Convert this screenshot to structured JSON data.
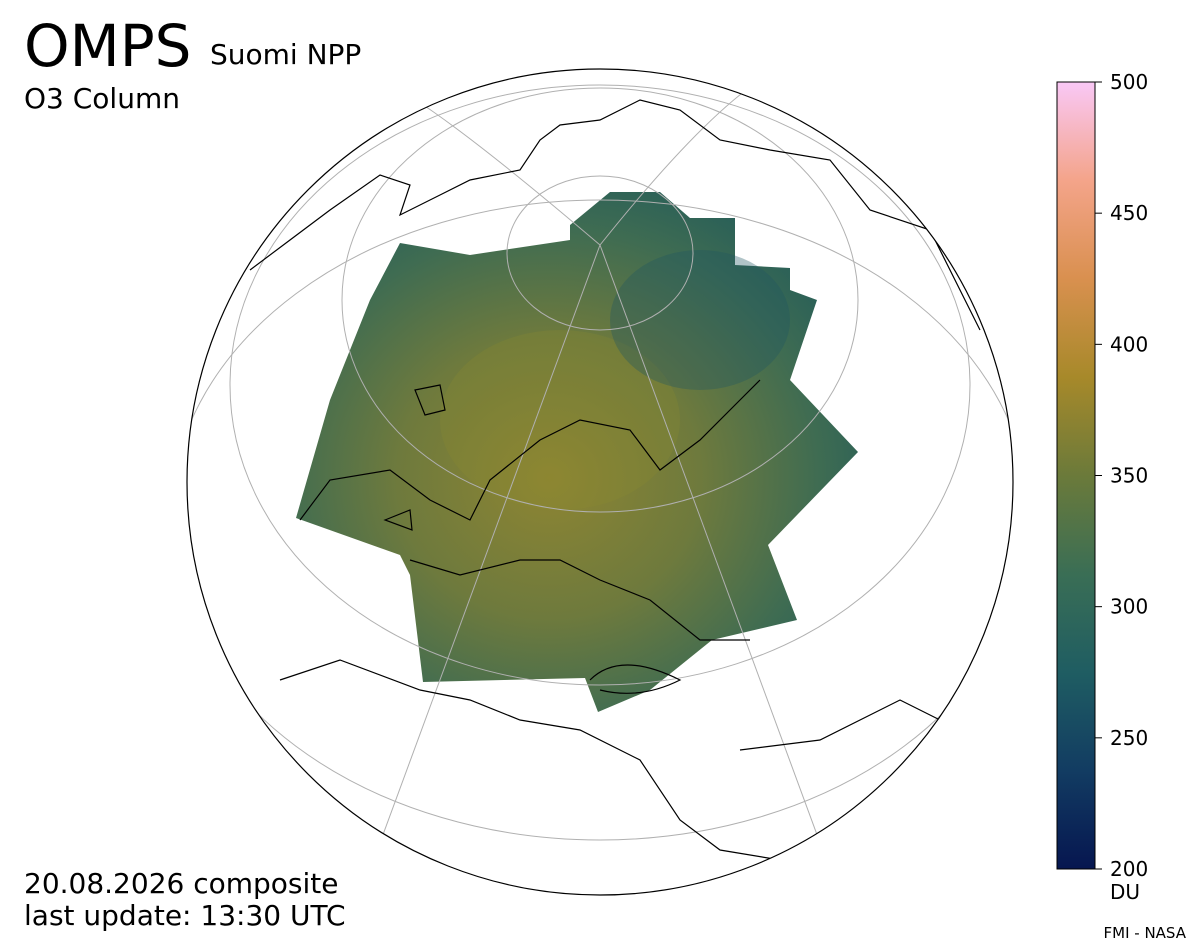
{
  "header": {
    "title": "OMPS",
    "satellite": "Suomi NPP",
    "product": "O3 Column"
  },
  "footer": {
    "date_line": "20.08.2026 composite",
    "update_line": "last update: 13:30 UTC",
    "credit": "FMI - NASA"
  },
  "colorbar": {
    "lim": [
      200,
      500
    ],
    "ticks": [
      200,
      250,
      300,
      350,
      400,
      450,
      500
    ],
    "unit": "DU",
    "colors": [
      "#061650",
      "#123c62",
      "#1f5d62",
      "#3a6e55",
      "#6b7a3a",
      "#a7892a",
      "#d9904f",
      "#f4a48a",
      "#f9c8f6"
    ]
  }
}
